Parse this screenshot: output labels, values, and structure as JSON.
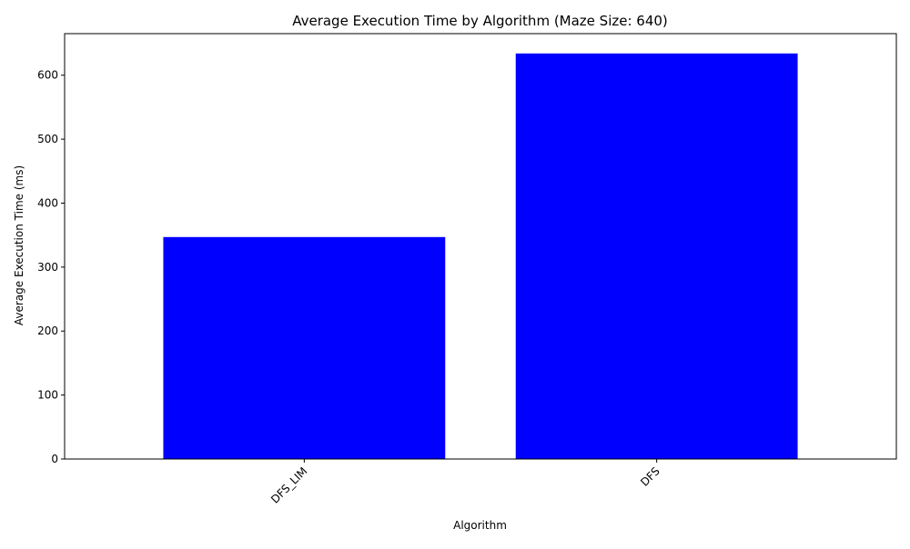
{
  "chart_data": {
    "type": "bar",
    "title": "Average Execution Time by Algorithm (Maze Size: 640)",
    "xlabel": "Algorithm",
    "ylabel": "Average Execution Time (ms)",
    "categories": [
      "DFS_LIM",
      "DFS"
    ],
    "values": [
      347,
      634
    ],
    "ylim": [
      0,
      665
    ],
    "yticks": [
      0,
      100,
      200,
      300,
      400,
      500,
      600
    ],
    "bar_color": "#0000ff",
    "grid": false,
    "legend": "none",
    "x_tick_rotation_deg": 45
  }
}
